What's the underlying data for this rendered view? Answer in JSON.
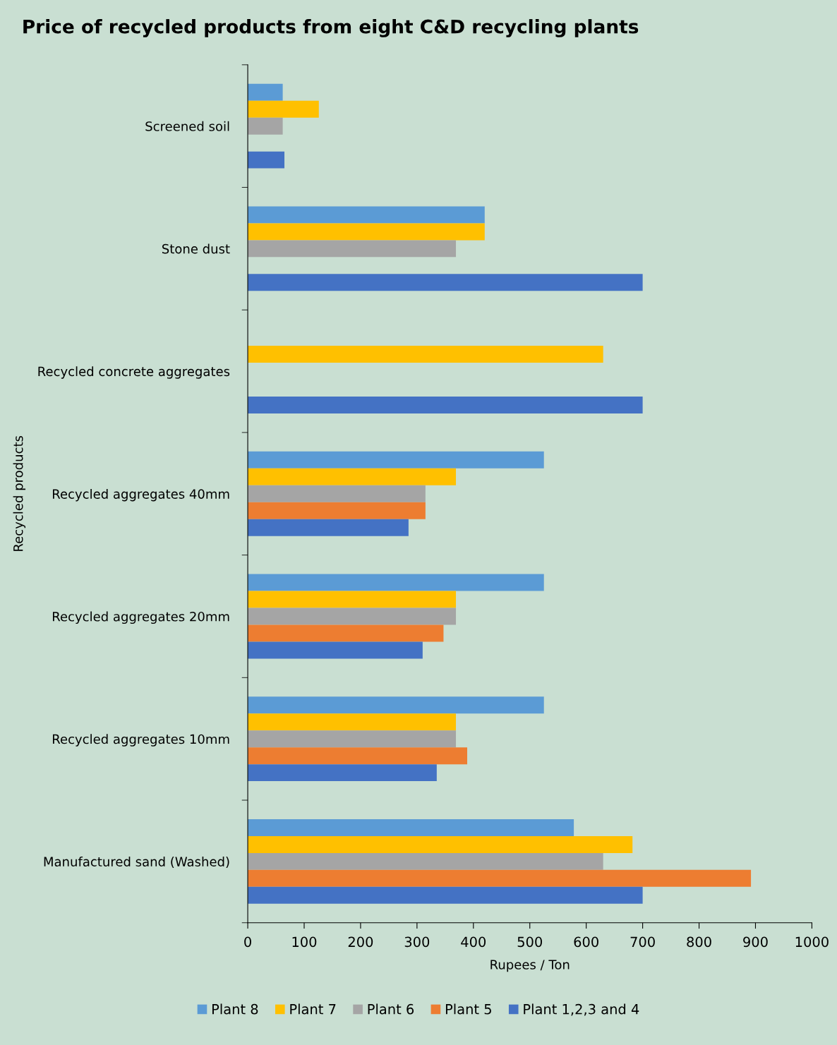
{
  "chart_data": {
    "type": "bar",
    "orientation": "horizontal",
    "title": "Price of recycled products from eight C&D recycling plants",
    "xlabel": "Rupees / Ton",
    "ylabel": "Recycled products",
    "categories": [
      "Screened soil",
      "Stone dust",
      "Recycled concrete aggregates",
      "Recycled aggregates 40mm",
      "Recycled aggregates 20mm",
      "Recycled aggregates 10mm",
      "Manufactured sand (Washed)"
    ],
    "series": [
      {
        "name": "Plant 8",
        "color": "#5b9bd5",
        "values": [
          62,
          420,
          null,
          525,
          525,
          525,
          578
        ]
      },
      {
        "name": "Plant 7",
        "color": "#ffc000",
        "values": [
          126,
          420,
          630,
          369,
          369,
          369,
          682
        ]
      },
      {
        "name": "Plant 6",
        "color": "#a5a5a5",
        "values": [
          62,
          369,
          null,
          315,
          369,
          369,
          630
        ]
      },
      {
        "name": "Plant 5",
        "color": "#ed7d31",
        "values": [
          null,
          null,
          null,
          315,
          347,
          389,
          892
        ]
      },
      {
        "name": "Plant 1,2,3 and 4",
        "color": "#4472c4",
        "values": [
          65,
          700,
          700,
          285,
          310,
          335,
          700
        ]
      }
    ],
    "xlim": [
      0,
      1000
    ],
    "xticks": [
      0,
      100,
      200,
      300,
      400,
      500,
      600,
      700,
      800,
      900,
      1000
    ],
    "grid": false,
    "legend": "bottom"
  }
}
